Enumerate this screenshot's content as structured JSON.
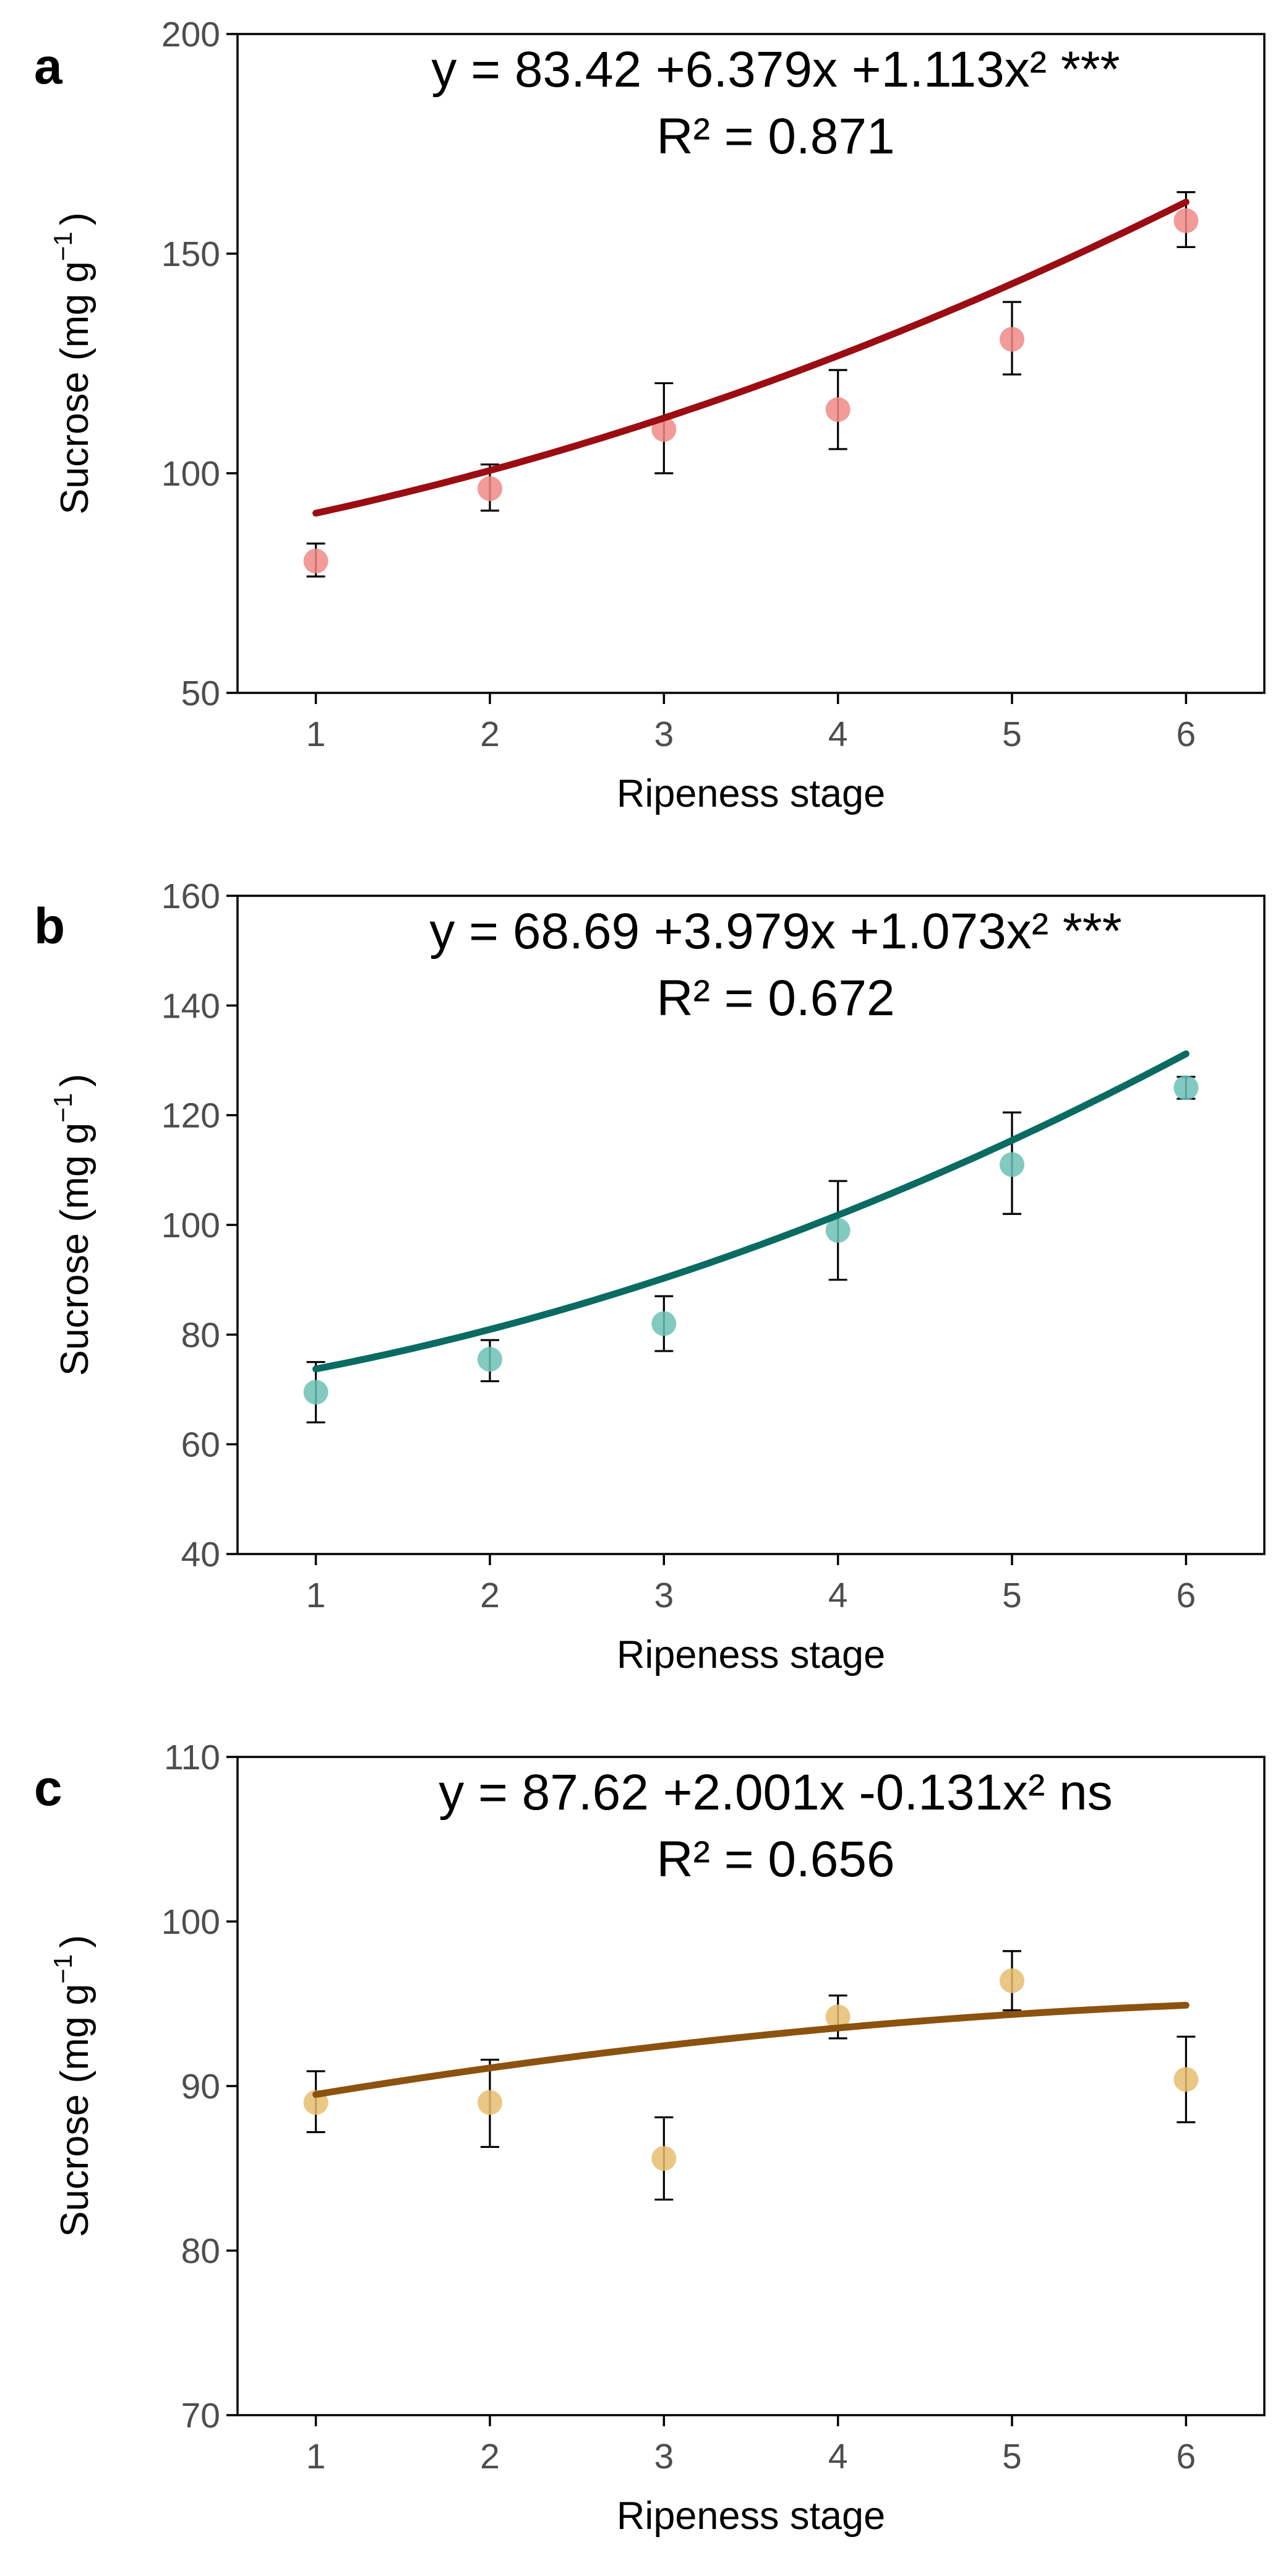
{
  "chart_data": [
    {
      "type": "scatter",
      "panel_label": "a",
      "equation": "y = 83.42 +6.379x +1.113x² ***",
      "r_squared": "R² = 0.871",
      "xlabel": "Ripeness stage",
      "ylabel": "Sucrose (mg g",
      "ylabel_sup": "−1",
      "ylabel_close": ")",
      "xlim": [
        0.55,
        6.45
      ],
      "ylim": [
        50,
        200
      ],
      "xticks": [
        1,
        2,
        3,
        4,
        5,
        6
      ],
      "yticks": [
        50,
        100,
        150,
        200
      ],
      "grid": false,
      "series": [
        {
          "x": [
            1,
            2,
            3,
            4,
            5,
            6
          ],
          "values": [
            80,
            96.5,
            110,
            114.5,
            130.5,
            157.5
          ],
          "error_low": [
            76.5,
            91.5,
            100,
            105.5,
            122.5,
            151.5
          ],
          "error_high": [
            84,
            102,
            120.5,
            123.5,
            139,
            164
          ],
          "point_color": "#f08a86",
          "fit": {
            "b0": 83.42,
            "b1": 6.379,
            "b2": 1.113,
            "color": "#9b0d12"
          }
        }
      ]
    },
    {
      "type": "scatter",
      "panel_label": "b",
      "equation": "y = 68.69 +3.979x +1.073x² ***",
      "r_squared": "R² = 0.672",
      "xlabel": "Ripeness stage",
      "ylabel": "Sucrose (mg g",
      "ylabel_sup": "−1",
      "ylabel_close": ")",
      "xlim": [
        0.55,
        6.45
      ],
      "ylim": [
        40,
        160
      ],
      "xticks": [
        1,
        2,
        3,
        4,
        5,
        6
      ],
      "yticks": [
        40,
        60,
        80,
        100,
        120,
        140,
        160
      ],
      "grid": false,
      "series": [
        {
          "x": [
            1,
            2,
            3,
            4,
            5,
            6
          ],
          "values": [
            69.5,
            75.5,
            82,
            99,
            111,
            125
          ],
          "error_low": [
            64,
            71.5,
            77,
            90,
            102,
            123
          ],
          "error_high": [
            75,
            79,
            87,
            108,
            120.5,
            127
          ],
          "point_color": "#6cc1b5",
          "fit": {
            "b0": 68.69,
            "b1": 3.979,
            "b2": 1.073,
            "color": "#0a6b62"
          }
        }
      ]
    },
    {
      "type": "scatter",
      "panel_label": "c",
      "equation": "y = 87.62 +2.001x -0.131x² ns",
      "r_squared": "R² = 0.656",
      "xlabel": "Ripeness stage",
      "ylabel": "Sucrose (mg g",
      "ylabel_sup": "−1",
      "ylabel_close": ")",
      "xlim": [
        0.55,
        6.45
      ],
      "ylim": [
        70,
        110
      ],
      "xticks": [
        1,
        2,
        3,
        4,
        5,
        6
      ],
      "yticks": [
        70,
        80,
        90,
        100,
        110
      ],
      "grid": false,
      "series": [
        {
          "x": [
            1,
            2,
            3,
            4,
            5,
            6
          ],
          "values": [
            89,
            89,
            85.6,
            94.2,
            96.4,
            90.4
          ],
          "error_low": [
            87.2,
            86.3,
            83.1,
            92.9,
            94.6,
            87.8
          ],
          "error_high": [
            90.9,
            91.6,
            88.1,
            95.5,
            98.2,
            93
          ],
          "point_color": "#e6bd6e",
          "fit": {
            "b0": 87.62,
            "b1": 2.001,
            "b2": -0.131,
            "color": "#8b5210"
          }
        }
      ]
    }
  ]
}
